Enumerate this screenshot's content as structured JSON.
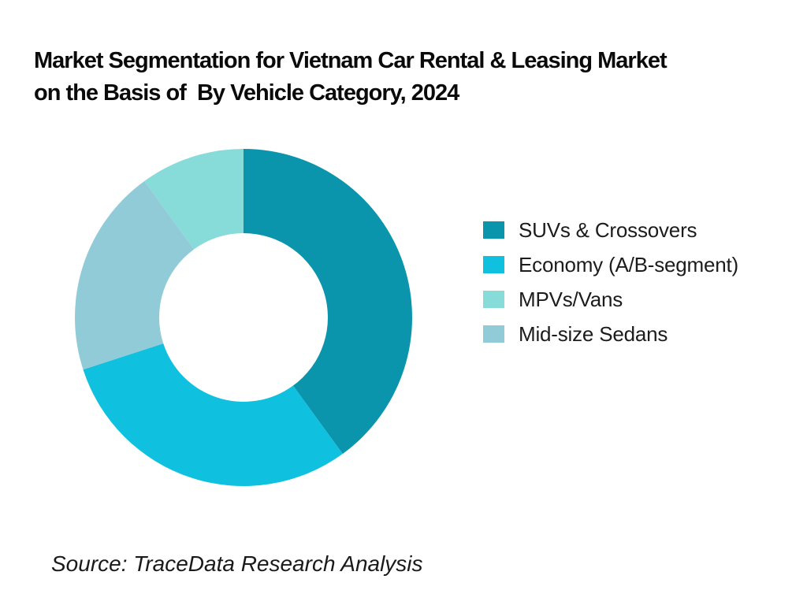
{
  "header": {
    "title_line1": "Market Segmentation for Vietnam Car Rental & Leasing Market",
    "title_line2": "on the Basis of  By Vehicle Category, 2024"
  },
  "chart_data": {
    "type": "pie",
    "subtype": "donut",
    "title": "Market Segmentation for Vietnam Car Rental & Leasing Market on the Basis of  By Vehicle Category, 2024",
    "segments": [
      {
        "label": "SUVs & Crossovers",
        "value": 40,
        "color": "#0A95AD"
      },
      {
        "label": "Economy (A/B-segment)",
        "value": 30,
        "color": "#10C0DF"
      },
      {
        "label": "MPVs/Vans",
        "value": 10,
        "color": "#87DBD8"
      },
      {
        "label": "Mid-size Sedans",
        "value": 20,
        "color": "#92CBD8"
      }
    ],
    "units": "percent_share",
    "start_angle_deg": 0,
    "direction": "clockwise",
    "slice_order": "value_descending",
    "inner_radius_ratio": 0.5,
    "hole_color": "#ffffff",
    "legend_position": "right",
    "data_labels": false,
    "background": "#ffffff"
  },
  "footer": {
    "source": "Source: TraceData Research Analysis"
  }
}
